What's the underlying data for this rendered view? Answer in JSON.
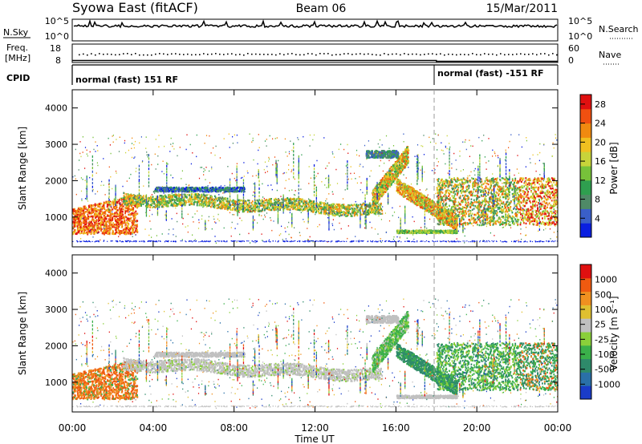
{
  "header": {
    "station": "Syowa East (fitACF)",
    "beam": "Beam 06",
    "date": "15/Mar/2011"
  },
  "top_panels": {
    "nsky_label": "N.Sky",
    "nsky_ticks": [
      "10^5",
      "10^0"
    ],
    "nsearch_label": "N.Search",
    "nsearch_ticks": [
      "10^5",
      "10^0"
    ],
    "freq_label_top": "Freq.",
    "freq_label_bottom": "[MHz]",
    "freq_ticks": [
      "18",
      "8"
    ],
    "nave_label": "Nave",
    "nave_ticks": [
      "60",
      "0"
    ],
    "cpid_label": "CPID",
    "cpid_segments": [
      {
        "label": "normal (fast) 151 RF",
        "start_hour": 0
      },
      {
        "label": "normal (fast) -151 RF",
        "start_hour": 18
      }
    ]
  },
  "chart_data": [
    {
      "type": "heatmap",
      "panel": "power",
      "ylabel": "Slant Range [km]",
      "xlabel": "",
      "x_ticks": [
        "00:00",
        "04:00",
        "08:00",
        "12:00",
        "16:00",
        "20:00",
        "00:00"
      ],
      "xlim_hours": [
        0,
        24
      ],
      "y_ticks": [
        1000,
        2000,
        3000,
        4000
      ],
      "ylim": [
        180,
        4500
      ],
      "colorbar": {
        "label": "Power [dB]",
        "ticks": [
          "4",
          "8",
          "12",
          "16",
          "20",
          "24",
          "28"
        ],
        "colors": [
          "#0a1fe0",
          "#3a5fc8",
          "#4f8a67",
          "#2f9f4f",
          "#77c23a",
          "#c8d43a",
          "#f0c020",
          "#f08a10",
          "#f05010",
          "#e01010"
        ]
      }
    },
    {
      "type": "heatmap",
      "panel": "velocity",
      "ylabel": "Slant Range [km]",
      "xlabel": "Time UT",
      "x_ticks": [
        "00:00",
        "04:00",
        "08:00",
        "12:00",
        "16:00",
        "20:00",
        "00:00"
      ],
      "xlim_hours": [
        0,
        24
      ],
      "y_ticks": [
        1000,
        2000,
        3000,
        4000
      ],
      "ylim": [
        180,
        4500
      ],
      "colorbar": {
        "label": "Velocity [m s⁻¹]",
        "ticks": [
          "1000",
          "500",
          "100",
          "25",
          "-25",
          "-100",
          "-500",
          "-1000"
        ],
        "colors": [
          "#1a3cc8",
          "#2a70a8",
          "#2e8a6a",
          "#3ab04a",
          "#8ad03a",
          "#c0c0c0",
          "#e0c030",
          "#f09020",
          "#f05a10",
          "#e01010"
        ]
      }
    }
  ]
}
